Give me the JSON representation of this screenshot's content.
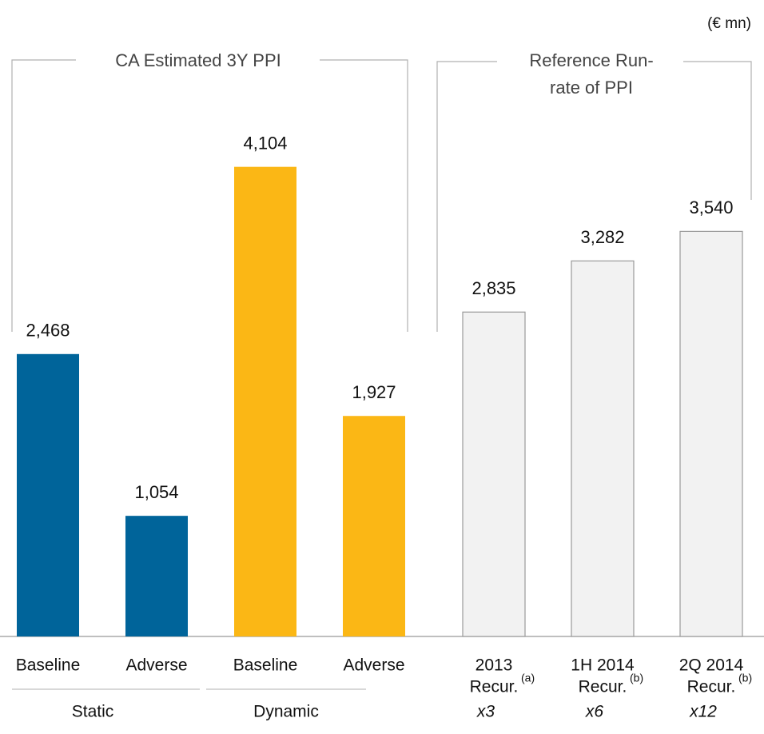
{
  "chart_data": {
    "type": "bar",
    "unit": "(€ mn)",
    "brackets": [
      {
        "label": [
          "CA Estimated 3Y PPI"
        ]
      },
      {
        "label": [
          "Reference Run-",
          "rate of PPI"
        ]
      }
    ],
    "categories": [
      [
        "Baseline"
      ],
      [
        "Adverse"
      ],
      [
        "Baseline"
      ],
      [
        "Adverse"
      ],
      [
        "2013",
        "Recur."
      ],
      [
        "1H 2014",
        "Recur."
      ],
      [
        "2Q 2014",
        "Recur."
      ]
    ],
    "footnotes": [
      null,
      null,
      null,
      null,
      "(a)",
      "(b)",
      "(b)"
    ],
    "multipliers": [
      null,
      null,
      null,
      null,
      "x3",
      "x6",
      "x12"
    ],
    "groups": [
      "Static",
      "Dynamic"
    ],
    "values": [
      2468,
      1054,
      4104,
      1927,
      2835,
      3282,
      3540
    ],
    "value_labels": [
      "2,468",
      "1,054",
      "4,104",
      "1,927",
      "2,835",
      "3,282",
      "3,540"
    ],
    "colors": [
      "#00649a",
      "#00649a",
      "#fbb715",
      "#fbb715",
      "#f2f2f2",
      "#f2f2f2",
      "#f2f2f2"
    ],
    "ylim": [
      0,
      4500
    ]
  }
}
